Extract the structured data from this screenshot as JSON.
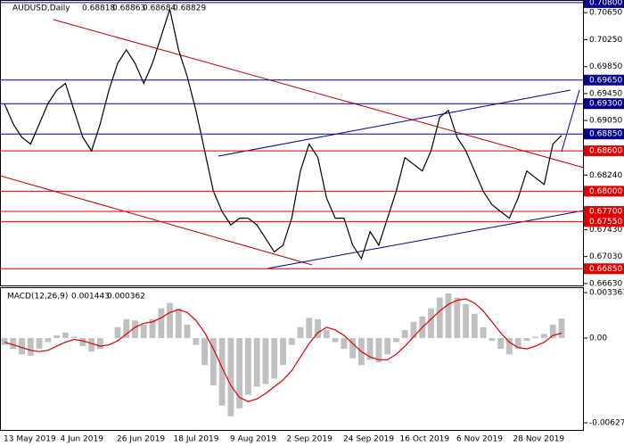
{
  "chart_data": [
    {
      "type": "line",
      "title": "AUDUSD,Daily",
      "header_values": [
        0.68818,
        0.68863,
        0.68684,
        0.68829
      ],
      "values": [
        0.693,
        0.69,
        0.688,
        0.687,
        0.69,
        0.693,
        0.695,
        0.696,
        0.692,
        0.688,
        0.686,
        0.69,
        0.695,
        0.699,
        0.701,
        0.699,
        0.696,
        0.699,
        0.703,
        0.707,
        0.701,
        0.697,
        0.692,
        0.686,
        0.68,
        0.677,
        0.675,
        0.676,
        0.676,
        0.675,
        0.673,
        0.671,
        0.672,
        0.676,
        0.683,
        0.687,
        0.685,
        0.679,
        0.676,
        0.676,
        0.672,
        0.67,
        0.674,
        0.672,
        0.676,
        0.68,
        0.685,
        0.684,
        0.683,
        0.686,
        0.691,
        0.692,
        0.688,
        0.686,
        0.683,
        0.68,
        0.678,
        0.677,
        0.676,
        0.679,
        0.683,
        0.682,
        0.681,
        0.687,
        0.68829
      ],
      "color": "#000000",
      "ylim": [
        0.66602,
        0.70825
      ],
      "yticks": [
        {
          "value": 0.7065,
          "label": "0.70650"
        },
        {
          "value": 0.7025,
          "label": "0.70250"
        },
        {
          "value": 0.6985,
          "label": "0.69850"
        },
        {
          "value": 0.6945,
          "label": "0.69450"
        },
        {
          "value": 0.6905,
          "label": "0.69050"
        },
        {
          "value": 0.6824,
          "label": "0.68240"
        },
        {
          "value": 0.6743,
          "label": "0.67430"
        },
        {
          "value": 0.6703,
          "label": "0.67030"
        },
        {
          "value": 0.6663,
          "label": "0.66630"
        }
      ],
      "levels": [
        {
          "value": 0.708,
          "label": "0.70800",
          "color": "#00008b"
        },
        {
          "value": 0.6965,
          "label": "0.69650",
          "color": "#00008b"
        },
        {
          "value": 0.693,
          "label": "0.69300",
          "color": "#00008b"
        },
        {
          "value": 0.6885,
          "label": "0.68850",
          "color": "#00008b"
        },
        {
          "value": 0.686,
          "label": "0.68600",
          "color": "#e00000"
        },
        {
          "value": 0.68,
          "label": "0.68000",
          "color": "#e00000"
        },
        {
          "value": 0.677,
          "label": "0.67700",
          "color": "#e00000"
        },
        {
          "value": 0.6755,
          "label": "0.67550",
          "color": "#e00000"
        },
        {
          "value": 0.6685,
          "label": "0.66850",
          "color": "#e00000"
        }
      ],
      "x_labels": [
        "13 May 2019",
        "4 Jun 2019",
        "26 Jun 2019",
        "18 Jul 2019",
        "9 Aug 2019",
        "2 Sep 2019",
        "24 Sep 2019",
        "16 Oct 2019",
        "6 Nov 2019",
        "28 Nov 2019"
      ]
    },
    {
      "type": "bar",
      "title": "MACD(12,26,9)",
      "header_values": [
        0.001443,
        0.000362
      ],
      "series": [
        {
          "color": "#c0c0c0",
          "values": [
            -0.0005,
            -0.0008,
            -0.0012,
            -0.0013,
            -0.0008,
            -0.0003,
            0.0002,
            0.0004,
            0.0001,
            -0.0006,
            -0.001,
            -0.0008,
            0.0,
            0.0008,
            0.0014,
            0.0013,
            0.001,
            0.0014,
            0.0022,
            0.0026,
            0.0022,
            0.001,
            -0.0005,
            -0.002,
            -0.0035,
            -0.005,
            -0.0058,
            -0.0052,
            -0.0042,
            -0.0036,
            -0.0034,
            -0.003,
            -0.002,
            -0.0005,
            0.0008,
            0.0015,
            0.0014,
            0.0006,
            -0.0003,
            -0.0008,
            -0.0015,
            -0.002,
            -0.0016,
            -0.0018,
            -0.0012,
            -0.0003,
            0.0006,
            0.0012,
            0.0016,
            0.0022,
            0.003,
            0.0033,
            0.003,
            0.0025,
            0.0018,
            0.0008,
            -0.0002,
            -0.0008,
            -0.0012,
            -0.0008,
            -0.0002,
            0.0001,
            0.0003,
            0.001,
            0.001443
          ]
        },
        {
          "color": "#e00000",
          "type": "line",
          "values": [
            -0.0003,
            -0.0005,
            -0.0007,
            -0.0009,
            -0.001,
            -0.0009,
            -0.0006,
            -0.0003,
            -0.0001,
            -0.0002,
            -0.0004,
            -0.0006,
            -0.0005,
            -0.0002,
            0.0003,
            0.0008,
            0.0011,
            0.0012,
            0.0015,
            0.0019,
            0.0021,
            0.0019,
            0.0013,
            0.0004,
            -0.0008,
            -0.0022,
            -0.0035,
            -0.0044,
            -0.0047,
            -0.0045,
            -0.0041,
            -0.0036,
            -0.0031,
            -0.0024,
            -0.0014,
            -0.0004,
            0.0004,
            0.0008,
            0.0006,
            0.0002,
            -0.0004,
            -0.001,
            -0.0014,
            -0.0016,
            -0.0016,
            -0.0012,
            -0.0006,
            0.0001,
            0.0008,
            0.0014,
            0.002,
            0.0025,
            0.0028,
            0.0029,
            0.0026,
            0.002,
            0.0012,
            0.0004,
            -0.0003,
            -0.0007,
            -0.0008,
            -0.0006,
            -0.0003,
            0.0002,
            0.000362
          ]
        }
      ],
      "ylim": [
        -0.0068,
        0.0037
      ],
      "yticks": [
        {
          "value": 0.003363,
          "label": "0.003363"
        },
        {
          "value": 0,
          "label": "0.00"
        },
        {
          "value": -0.006271,
          "label": "-0.006271"
        }
      ]
    }
  ]
}
